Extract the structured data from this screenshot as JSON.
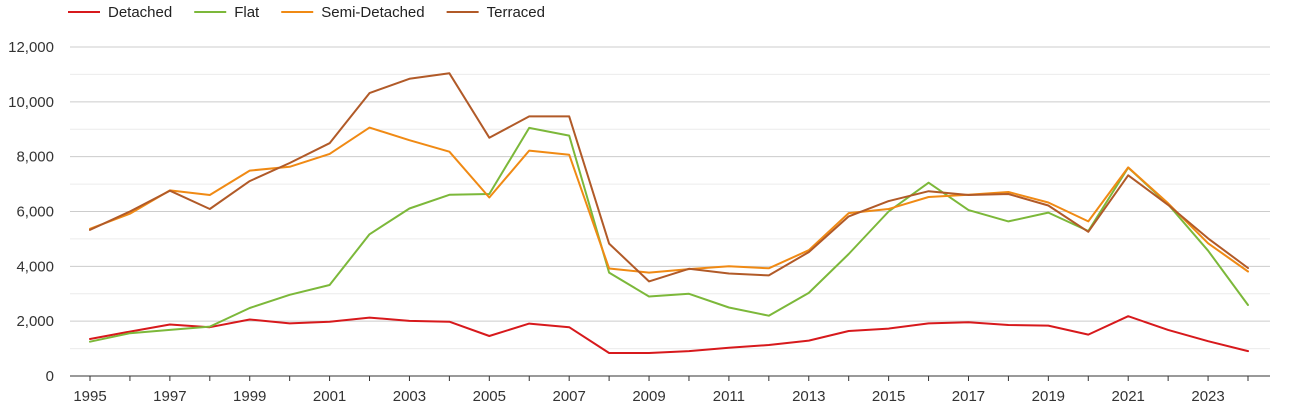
{
  "chart_data": {
    "type": "line",
    "x": [
      1995,
      1996,
      1997,
      1998,
      1999,
      2000,
      2001,
      2002,
      2003,
      2004,
      2005,
      2006,
      2007,
      2008,
      2009,
      2010,
      2011,
      2012,
      2013,
      2014,
      2015,
      2016,
      2017,
      2018,
      2019,
      2020,
      2021,
      2022,
      2023,
      2024
    ],
    "series": [
      {
        "name": "Detached",
        "color": "#d7191c",
        "values": [
          1350,
          1620,
          1880,
          1780,
          2060,
          1920,
          1980,
          2130,
          2010,
          1980,
          1460,
          1910,
          1780,
          840,
          840,
          910,
          1030,
          1130,
          1290,
          1640,
          1730,
          1920,
          1960,
          1860,
          1840,
          1510,
          2180,
          1680,
          1270,
          910
        ]
      },
      {
        "name": "Flat",
        "color": "#7cb83a",
        "values": [
          1250,
          1560,
          1680,
          1800,
          2480,
          2960,
          3320,
          5170,
          6110,
          6610,
          6640,
          9050,
          8770,
          3770,
          2900,
          3000,
          2500,
          2200,
          3030,
          4450,
          6000,
          7050,
          6050,
          5640,
          5960,
          5290,
          7600,
          6260,
          4570,
          2590
        ]
      },
      {
        "name": "Semi-Detached",
        "color": "#f08a14",
        "values": [
          5370,
          5920,
          6770,
          6600,
          7490,
          7630,
          8100,
          9060,
          8600,
          8180,
          6510,
          8220,
          8070,
          3920,
          3770,
          3900,
          4000,
          3930,
          4590,
          5940,
          6090,
          6530,
          6610,
          6710,
          6330,
          5640,
          7610,
          6300,
          4840,
          3810
        ]
      },
      {
        "name": "Terraced",
        "color": "#b15a28",
        "values": [
          5330,
          6000,
          6760,
          6090,
          7110,
          7770,
          8490,
          10320,
          10840,
          11040,
          8690,
          9470,
          9470,
          4830,
          3450,
          3910,
          3740,
          3670,
          4520,
          5820,
          6380,
          6740,
          6600,
          6640,
          6220,
          5260,
          7320,
          6240,
          5020,
          3940
        ]
      }
    ],
    "x_tick_labels": [
      "1995",
      "1997",
      "1999",
      "2001",
      "2003",
      "2005",
      "2007",
      "2009",
      "2011",
      "2013",
      "2015",
      "2017",
      "2019",
      "2021",
      "2023"
    ],
    "y_tick_labels": [
      "0",
      "2,000",
      "4,000",
      "6,000",
      "8,000",
      "10,000",
      "12,000"
    ],
    "ylim": [
      0,
      12000
    ],
    "xlim": [
      1995,
      2024
    ],
    "grid": true,
    "legend_placement": "top-left"
  }
}
